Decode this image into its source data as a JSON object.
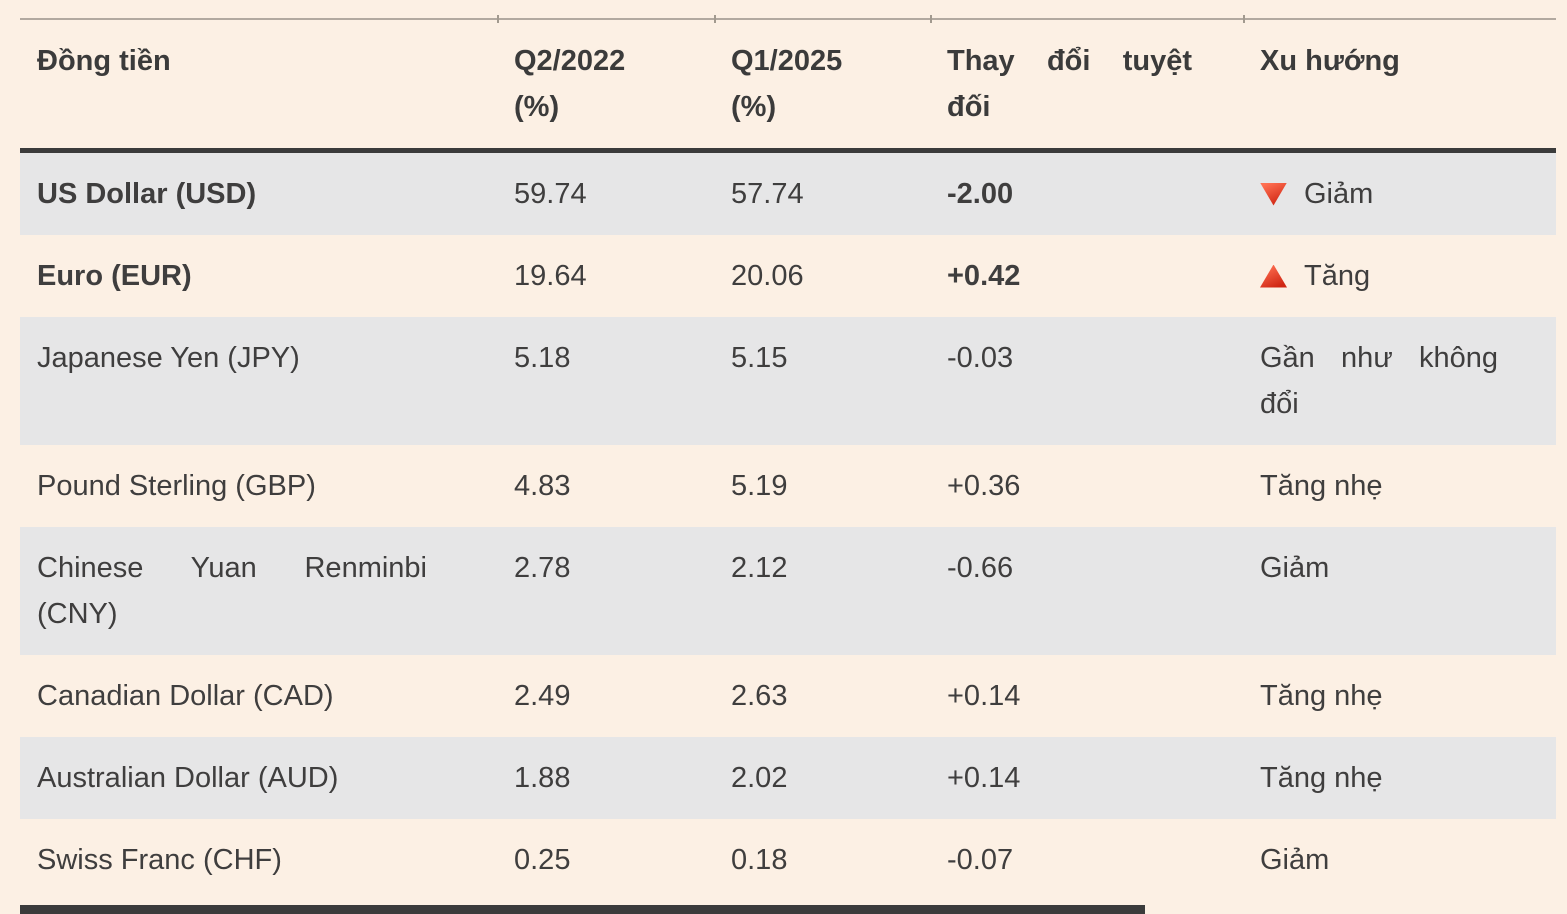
{
  "colors": {
    "page_background": "#fcf0e4",
    "stripe_row_background": "#e6e6e7",
    "dark_rule": "#3b3b3b",
    "top_rule": "#b2a9a0",
    "text": "#3f3e3e",
    "trend_red": "#e03a24"
  },
  "table": {
    "columns": [
      {
        "label": "Đồng tiền"
      },
      {
        "label": "Q2/2022\n(%)"
      },
      {
        "label": "Q1/2025\n(%)"
      },
      {
        "label": "Thay đổi tuyệt đối"
      },
      {
        "label": "Xu hướng"
      }
    ],
    "rows": [
      {
        "currency": "US Dollar (USD)",
        "q2_2022": "59.74",
        "q1_2025": "57.74",
        "change": "-2.00",
        "trend": "Giảm",
        "trend_icon": "triangle-down",
        "bold": true
      },
      {
        "currency": "Euro (EUR)",
        "q2_2022": "19.64",
        "q1_2025": "20.06",
        "change": "+0.42",
        "trend": "Tăng",
        "trend_icon": "triangle-up",
        "bold": true
      },
      {
        "currency": "Japanese Yen (JPY)",
        "q2_2022": "5.18",
        "q1_2025": "5.15",
        "change": "-0.03",
        "trend": "Gần như không đổi",
        "trend_icon": null,
        "bold": false
      },
      {
        "currency": "Pound Sterling (GBP)",
        "q2_2022": "4.83",
        "q1_2025": "5.19",
        "change": "+0.36",
        "trend": "Tăng nhẹ",
        "trend_icon": null,
        "bold": false
      },
      {
        "currency": "Chinese Yuan Renminbi (CNY)",
        "q2_2022": "2.78",
        "q1_2025": "2.12",
        "change": "-0.66",
        "trend": "Giảm",
        "trend_icon": null,
        "bold": false
      },
      {
        "currency": "Canadian Dollar (CAD)",
        "q2_2022": "2.49",
        "q1_2025": "2.63",
        "change": "+0.14",
        "trend": "Tăng nhẹ",
        "trend_icon": null,
        "bold": false
      },
      {
        "currency": "Australian Dollar (AUD)",
        "q2_2022": "1.88",
        "q1_2025": "2.02",
        "change": "+0.14",
        "trend": "Tăng nhẹ",
        "trend_icon": null,
        "bold": false
      },
      {
        "currency": "Swiss Franc (CHF)",
        "q2_2022": "0.25",
        "q1_2025": "0.18",
        "change": "-0.07",
        "trend": "Giảm",
        "trend_icon": null,
        "bold": false
      }
    ]
  }
}
